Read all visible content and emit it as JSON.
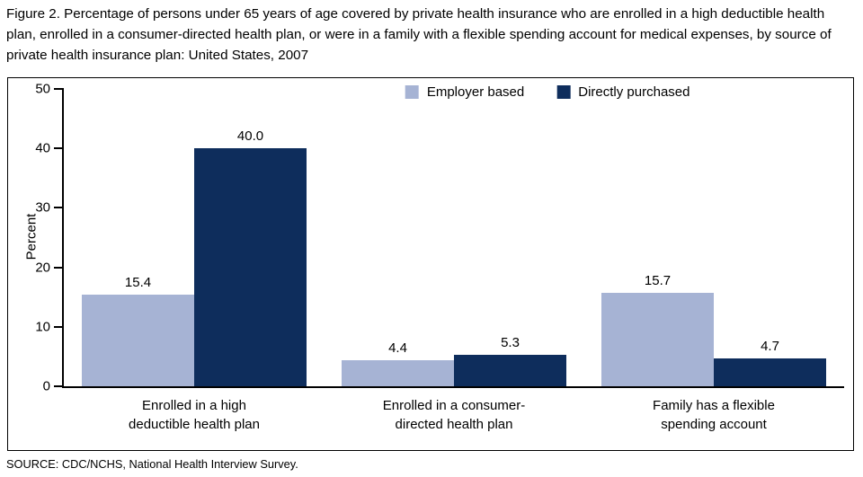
{
  "figure": {
    "title": "Figure 2. Percentage of persons under 65 years of age covered by private health insurance who are enrolled in a high deductible health plan, enrolled in a consumer-directed health plan, or were  in a family with a flexible spending account for medical expenses, by source of private health insurance plan: United States, 2007",
    "source": "SOURCE: CDC/NCHS, National Health Interview Survey."
  },
  "chart_data": {
    "type": "bar",
    "title": "Percentage of persons under 65 years of age covered by private health insurance who are enrolled in a high deductible health plan, enrolled in a consumer-directed health plan, or were in a family with a flexible spending account for medical expenses, by source of private private health insurance plan: United States, 2007",
    "categories": [
      "Enrolled in a high deductible health plan",
      "Enrolled in a consumer-directed health plan",
      "Family has a flexible spending account"
    ],
    "category_lines": [
      [
        "Enrolled in a high",
        "deductible health plan"
      ],
      [
        "Enrolled in a consumer-",
        "directed health plan"
      ],
      [
        "Family has a flexible",
        "spending account"
      ]
    ],
    "series": [
      {
        "name": "Employer based",
        "color": "#a6b3d4",
        "values": [
          15.4,
          4.4,
          15.7
        ]
      },
      {
        "name": "Directly purchased",
        "color": "#0e2d5c",
        "values": [
          40.0,
          5.3,
          4.7
        ]
      }
    ],
    "value_labels": [
      [
        "15.4",
        "4.4",
        "15.7"
      ],
      [
        "40.0",
        "5.3",
        "4.7"
      ]
    ],
    "xlabel": "",
    "ylabel": "Percent",
    "ylim": [
      0,
      50
    ],
    "yticks": [
      0,
      10,
      20,
      30,
      40,
      50
    ],
    "grid": false,
    "legend_position": "top-center"
  },
  "colors": {
    "employer_based": "#a6b3d4",
    "directly_purchased": "#0e2d5c",
    "axis": "#000000",
    "frame_border": "#000000"
  }
}
